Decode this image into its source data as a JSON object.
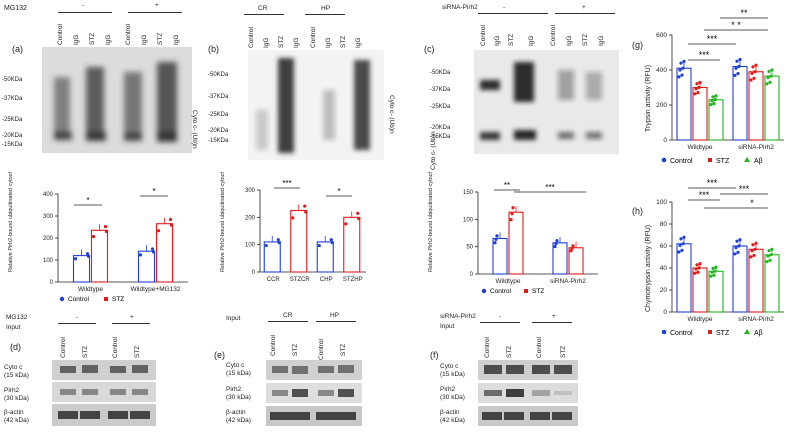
{
  "panel_a": {
    "letter": "(a)",
    "treatment": "MG132",
    "minus": "-",
    "plus": "+",
    "lanes": [
      "Control",
      "IgG",
      "STZ",
      "IgG",
      "Control",
      "IgG",
      "STZ",
      "IgG"
    ],
    "markers": [
      "-50KDa",
      "-37KDa",
      "-25KDa",
      "-20KDa",
      "-15KDa"
    ],
    "side_label": "Cyto c- (Ub)n"
  },
  "panel_b": {
    "letter": "(b)",
    "group_cr": "CR",
    "group_hp": "HP",
    "lanes": [
      "Control",
      "IgG",
      "STZ",
      "IgG",
      "Control",
      "IgG",
      "STZ",
      "IgG"
    ],
    "markers": [
      "-50KDa",
      "-37KDa",
      "-25KDa",
      "-20KDa",
      "-15KDa"
    ],
    "side_label": "Cyto c- (Ub)n"
  },
  "panel_c": {
    "letter": "(c)",
    "treatment": "siRNA-Pirh2",
    "minus": "-",
    "plus": "+",
    "lanes": [
      "Control",
      "IgG",
      "STZ",
      "IgG",
      "Control",
      "IgG",
      "STZ",
      "IgG"
    ],
    "markers": [
      "-50KDa",
      "-37KDa",
      "-25KDa",
      "-20KDa",
      "-15KDa"
    ],
    "side_label": "Cyto c- (Ub)n"
  },
  "bar_a": {
    "ylabel": "Relative Pirh2-bound ubiquitinated cytochrome c level",
    "legend_control": "Control",
    "legend_stz": "STZ",
    "sig1": "*",
    "sig2": "*"
  },
  "bar_b": {
    "ylabel": "Relative Pirh2-bound ubiquitinated cytochrome c level",
    "sig1": "***",
    "sig2": "*"
  },
  "bar_c": {
    "ylabel": "Relative Pirh2-bound ubiquitinated cytochrome c level",
    "legend_control": "Control",
    "legend_stz": "STZ",
    "sig1": "**",
    "sig2": "***"
  },
  "panel_g": {
    "letter": "(g)",
    "ylabel": "Trypsin activity (RFU)",
    "sig": [
      "***",
      "***",
      "**",
      "* *"
    ],
    "legend": [
      "Control",
      "STZ",
      "Aβ"
    ]
  },
  "panel_h": {
    "letter": "(h)",
    "ylabel": "Chymotrypsin activity (RFU)",
    "sig": [
      "***",
      "***",
      "***",
      "*"
    ],
    "legend": [
      "Control",
      "STZ",
      "Aβ"
    ]
  },
  "panel_d": {
    "letter": "(d)",
    "treatment": "MG132",
    "input": "Input",
    "minus": "-",
    "plus": "+",
    "lanes": [
      "Control",
      "STZ",
      "Control",
      "STZ"
    ],
    "rows": [
      "Cyto c\n(15 kDa)",
      "Pirh2\n(30 kDa)",
      "β-actin\n(42 kDa)"
    ]
  },
  "panel_e": {
    "letter": "(e)",
    "input": "Input",
    "group_cr": "CR",
    "group_hp": "HP",
    "lanes": [
      "Control",
      "STZ",
      "Control",
      "STZ"
    ],
    "rows": [
      "Cyto c\n(15 kDa)",
      "Pirh2\n(30 kDa)",
      "β-actin\n(42 kDa)"
    ]
  },
  "panel_f": {
    "letter": "(f)",
    "treatment": "siRNA-Pirh2",
    "input": "Input",
    "minus": "-",
    "plus": "+",
    "lanes": [
      "Control",
      "STZ",
      "Control",
      "STZ"
    ],
    "rows": [
      "Cyto c\n(15 kDa)",
      "Pirh2\n(30 kDa)",
      "β-actin\n(42 kDa)"
    ]
  },
  "chart_data": [
    {
      "type": "bar",
      "id": "bar_a",
      "categories": [
        "Wildtype",
        "Wildtype+MG132"
      ],
      "series": [
        {
          "name": "Control",
          "values": [
            120,
            140
          ],
          "color": "#1f3fd6"
        },
        {
          "name": "STZ",
          "values": [
            235,
            265
          ],
          "color": "#e21b1b"
        }
      ],
      "ylim": [
        0,
        400
      ],
      "yticks": [
        0,
        100,
        200,
        300,
        400
      ]
    },
    {
      "type": "bar",
      "id": "bar_b",
      "categories": [
        "CCR",
        "STZCR",
        "CHP",
        "STZHP"
      ],
      "values": [
        110,
        225,
        110,
        200
      ],
      "colors": [
        "#1f3fd6",
        "#e21b1b",
        "#1f3fd6",
        "#e21b1b"
      ],
      "ylim": [
        0,
        300
      ],
      "yticks": [
        0,
        100,
        200,
        300
      ]
    },
    {
      "type": "bar",
      "id": "bar_c",
      "categories": [
        "Wildtype",
        "siRNA-Pirh2"
      ],
      "series": [
        {
          "name": "Control",
          "values": [
            65,
            57
          ],
          "color": "#1f3fd6"
        },
        {
          "name": "STZ",
          "values": [
            113,
            48
          ],
          "color": "#e21b1b"
        }
      ],
      "ylim": [
        0,
        150
      ],
      "yticks": [
        0,
        50,
        100,
        150
      ]
    },
    {
      "type": "bar",
      "id": "panel_g",
      "categories": [
        "Wildtype",
        "siRNA-Pirh2"
      ],
      "series": [
        {
          "name": "Control",
          "values": [
            410,
            420
          ],
          "color": "#1f3fd6"
        },
        {
          "name": "STZ",
          "values": [
            300,
            390
          ],
          "color": "#e21b1b"
        },
        {
          "name": "Aβ",
          "values": [
            230,
            365
          ],
          "color": "#22b522"
        }
      ],
      "ylim": [
        0,
        600
      ],
      "yticks": [
        0,
        200,
        400,
        600
      ]
    },
    {
      "type": "bar",
      "id": "panel_h",
      "categories": [
        "Wildtype",
        "siRNA-Pirh2"
      ],
      "series": [
        {
          "name": "Control",
          "values": [
            62,
            60
          ],
          "color": "#1f3fd6"
        },
        {
          "name": "STZ",
          "values": [
            40,
            57
          ],
          "color": "#e21b1b"
        },
        {
          "name": "Aβ",
          "values": [
            37,
            52
          ],
          "color": "#22b522"
        }
      ],
      "ylim": [
        0,
        100
      ],
      "yticks": [
        0,
        20,
        40,
        60,
        80,
        100
      ]
    }
  ]
}
